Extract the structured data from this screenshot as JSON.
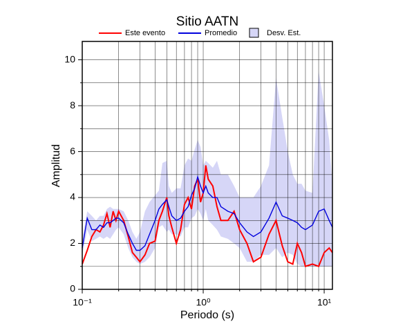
{
  "chart_data": {
    "type": "line",
    "title": "Sitio AATN",
    "xlabel": "Periodo (s)",
    "ylabel": "Amplitud",
    "xlog": true,
    "xlim": [
      0.1,
      11.7
    ],
    "ylim": [
      0,
      10.8
    ],
    "xticks": [
      {
        "value": 0.1,
        "label": "10⁻¹"
      },
      {
        "value": 1,
        "label": "10⁰"
      },
      {
        "value": 10,
        "label": "10¹"
      }
    ],
    "xminor": [
      0.2,
      0.3,
      0.4,
      0.5,
      0.6,
      0.7,
      0.8,
      0.9,
      2,
      3,
      4,
      5,
      6,
      7,
      8,
      9
    ],
    "yticks": [
      0,
      2,
      4,
      6,
      8,
      10
    ],
    "yminor": [
      1,
      3,
      5,
      7,
      9
    ],
    "grid": true,
    "legend": "top",
    "x": [
      0.1,
      0.11,
      0.12,
      0.13,
      0.14,
      0.15,
      0.16,
      0.17,
      0.18,
      0.19,
      0.2,
      0.22,
      0.24,
      0.26,
      0.28,
      0.3,
      0.33,
      0.36,
      0.4,
      0.43,
      0.46,
      0.5,
      0.52,
      0.55,
      0.6,
      0.65,
      0.7,
      0.75,
      0.8,
      0.85,
      0.9,
      0.95,
      1.0,
      1.05,
      1.1,
      1.2,
      1.3,
      1.4,
      1.6,
      1.8,
      2.0,
      2.3,
      2.6,
      3.0,
      3.5,
      4.0,
      4.5,
      5.0,
      5.5,
      6.0,
      6.5,
      7.0,
      8.0,
      9.0,
      10,
      11,
      11.7
    ],
    "band": {
      "name": "Desv. Est.",
      "color": "#d6d6f7",
      "edge": "#000000",
      "upper": [
        2.2,
        3.4,
        3.2,
        3.0,
        3.2,
        3.2,
        3.5,
        3.6,
        3.5,
        3.5,
        3.5,
        3.4,
        3.0,
        2.5,
        2.2,
        2.5,
        3.4,
        3.8,
        4.1,
        4.3,
        5.5,
        5.6,
        4.5,
        4.2,
        4.4,
        4.4,
        5.4,
        5.7,
        5.6,
        6.1,
        6.5,
        6.2,
        5.4,
        5.6,
        5.5,
        5.3,
        5.6,
        5.0,
        5.0,
        4.5,
        4.0,
        4.0,
        4.0,
        4.5,
        5.4,
        9.2,
        7.5,
        6.0,
        5.0,
        4.6,
        4.6,
        4.3,
        4.2,
        9.5,
        8.0,
        6.5,
        4.5
      ],
      "lower": [
        1.5,
        2.6,
        2.1,
        2.2,
        2.3,
        2.2,
        2.3,
        2.2,
        2.4,
        2.6,
        2.7,
        2.4,
        1.8,
        1.4,
        1.2,
        1.1,
        1.2,
        1.4,
        1.8,
        2.7,
        2.8,
        2.5,
        2.6,
        2.4,
        2.4,
        2.3,
        2.7,
        2.7,
        3.1,
        3.2,
        3.5,
        3.3,
        3.0,
        3.5,
        3.0,
        2.8,
        2.6,
        2.3,
        2.2,
        2.0,
        1.8,
        1.2,
        1.2,
        1.5,
        1.5,
        1.8,
        1.4,
        1.6,
        1.5,
        1.1,
        1.0,
        1.0,
        1.0,
        1.0,
        1.0,
        1.0,
        1.0
      ]
    },
    "series": [
      {
        "name": "Este evento",
        "color": "#ff0000",
        "values": [
          1.1,
          1.7,
          2.3,
          2.6,
          2.5,
          2.8,
          3.3,
          2.7,
          3.4,
          3.0,
          3.4,
          3.0,
          2.3,
          1.6,
          1.4,
          1.2,
          1.5,
          2.0,
          2.1,
          3.0,
          3.4,
          4.0,
          3.2,
          2.7,
          2.0,
          2.6,
          3.7,
          4.0,
          3.5,
          4.5,
          4.8,
          3.8,
          4.2,
          5.4,
          4.8,
          4.5,
          3.6,
          3.0,
          3.0,
          3.4,
          2.6,
          2.0,
          1.2,
          1.4,
          2.4,
          3.0,
          1.9,
          1.2,
          1.1,
          2.0,
          1.6,
          1.0,
          1.1,
          1.0,
          1.6,
          1.8,
          1.6
        ]
      },
      {
        "name": "Promedio",
        "color": "#0000dd",
        "values": [
          1.8,
          3.1,
          2.6,
          2.6,
          2.8,
          2.7,
          2.9,
          2.9,
          3.0,
          3.1,
          3.1,
          2.9,
          2.4,
          2.0,
          1.7,
          1.7,
          1.9,
          2.4,
          3.0,
          3.5,
          3.7,
          3.9,
          3.6,
          3.2,
          3.0,
          3.1,
          3.4,
          3.6,
          4.1,
          4.4,
          4.9,
          4.5,
          4.2,
          4.5,
          4.2,
          4.0,
          4.0,
          3.6,
          3.4,
          3.3,
          2.9,
          2.5,
          2.3,
          2.5,
          3.1,
          3.8,
          3.2,
          3.1,
          3.0,
          2.9,
          2.7,
          2.6,
          2.8,
          3.4,
          3.5,
          3.0,
          2.7
        ]
      }
    ]
  }
}
